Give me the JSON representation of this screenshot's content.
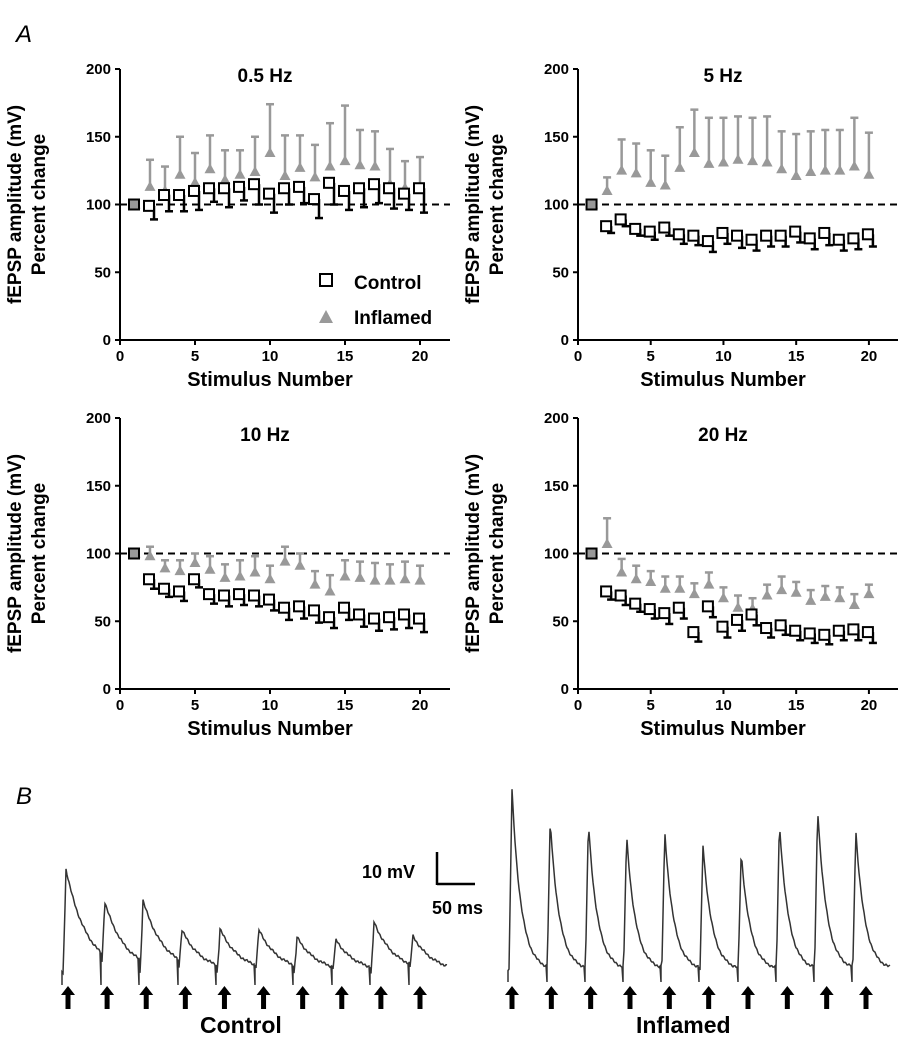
{
  "labels": {
    "panel_a": "A",
    "panel_b": "B"
  },
  "colors": {
    "control": "#000000",
    "inflamed": "#999999"
  },
  "legend": {
    "control": "Control",
    "inflamed": "Inflamed"
  },
  "traces": {
    "scale_v": "10 mV",
    "scale_t": "50 ms",
    "control_label": "Control",
    "inflamed_label": "Inflamed",
    "arrow_count": 10
  },
  "chart_data": [
    {
      "type": "scatter",
      "title": "0.5 Hz",
      "xlabel": "Stimulus Number",
      "ylabel": [
        "fEPSP amplitude (mV)",
        "Percent change"
      ],
      "xlim": [
        0,
        22
      ],
      "ylim": [
        0,
        200
      ],
      "xticks": [
        0,
        5,
        10,
        15,
        20
      ],
      "yticks": [
        0,
        50,
        100,
        150,
        200
      ],
      "reference_line": 100,
      "legend": true,
      "series": [
        {
          "name": "Control",
          "x": [
            1,
            2,
            3,
            4,
            5,
            6,
            7,
            8,
            9,
            10,
            11,
            12,
            13,
            14,
            15,
            16,
            17,
            18,
            19,
            20
          ],
          "values": [
            100,
            99,
            107,
            107,
            110,
            112,
            112,
            113,
            115,
            108,
            112,
            113,
            104,
            116,
            110,
            112,
            115,
            112,
            108,
            112
          ],
          "errors": [
            0,
            10,
            12,
            12,
            14,
            10,
            14,
            10,
            15,
            14,
            12,
            12,
            14,
            16,
            14,
            14,
            14,
            15,
            12,
            18
          ]
        },
        {
          "name": "Inflamed",
          "x": [
            1,
            2,
            3,
            4,
            5,
            6,
            7,
            8,
            9,
            10,
            11,
            12,
            13,
            14,
            15,
            16,
            17,
            18,
            19,
            20
          ],
          "values": [
            100,
            113,
            110,
            122,
            116,
            126,
            118,
            122,
            124,
            138,
            121,
            127,
            120,
            128,
            132,
            129,
            128,
            115,
            112,
            113
          ],
          "errors": [
            0,
            20,
            18,
            28,
            22,
            25,
            22,
            18,
            26,
            36,
            30,
            24,
            24,
            32,
            41,
            26,
            26,
            26,
            20,
            22
          ]
        }
      ]
    },
    {
      "type": "scatter",
      "title": "5 Hz",
      "xlabel": "Stimulus Number",
      "ylabel": [
        "fEPSP amplitude (mV)",
        "Percent change"
      ],
      "xlim": [
        0,
        22
      ],
      "ylim": [
        0,
        200
      ],
      "xticks": [
        0,
        5,
        10,
        15,
        20
      ],
      "yticks": [
        0,
        50,
        100,
        150,
        200
      ],
      "reference_line": 100,
      "series": [
        {
          "name": "Control",
          "x": [
            1,
            2,
            3,
            4,
            5,
            6,
            7,
            8,
            9,
            10,
            11,
            12,
            13,
            14,
            15,
            16,
            17,
            18,
            19,
            20
          ],
          "values": [
            100,
            84,
            89,
            82,
            80,
            83,
            78,
            77,
            73,
            79,
            77,
            74,
            77,
            77,
            80,
            75,
            79,
            74,
            75,
            78
          ],
          "errors": [
            0,
            5,
            5,
            5,
            6,
            6,
            7,
            7,
            8,
            8,
            9,
            8,
            8,
            8,
            8,
            8,
            9,
            8,
            8,
            9
          ]
        },
        {
          "name": "Inflamed",
          "x": [
            1,
            2,
            3,
            4,
            5,
            6,
            7,
            8,
            9,
            10,
            11,
            12,
            13,
            14,
            15,
            16,
            17,
            18,
            19,
            20
          ],
          "values": [
            100,
            110,
            125,
            123,
            116,
            114,
            127,
            138,
            130,
            131,
            133,
            132,
            131,
            126,
            121,
            124,
            125,
            125,
            128,
            122
          ],
          "errors": [
            0,
            10,
            23,
            22,
            24,
            22,
            30,
            32,
            34,
            33,
            32,
            32,
            34,
            28,
            31,
            30,
            30,
            30,
            36,
            31
          ]
        }
      ]
    },
    {
      "type": "scatter",
      "title": "10 Hz",
      "xlabel": "Stimulus Number",
      "ylabel": [
        "fEPSP amplitude (mV)",
        "Percent change"
      ],
      "xlim": [
        0,
        22
      ],
      "ylim": [
        0,
        200
      ],
      "xticks": [
        0,
        5,
        10,
        15,
        20
      ],
      "yticks": [
        0,
        50,
        100,
        150,
        200
      ],
      "reference_line": 100,
      "series": [
        {
          "name": "Control",
          "x": [
            1,
            2,
            3,
            4,
            5,
            6,
            7,
            8,
            9,
            10,
            11,
            12,
            13,
            14,
            15,
            16,
            17,
            18,
            19,
            20
          ],
          "values": [
            100,
            81,
            74,
            72,
            81,
            70,
            69,
            70,
            69,
            66,
            60,
            61,
            58,
            53,
            60,
            55,
            52,
            53,
            55,
            52
          ],
          "errors": [
            0,
            7,
            6,
            7,
            6,
            7,
            8,
            8,
            8,
            8,
            9,
            9,
            9,
            8,
            9,
            9,
            9,
            9,
            10,
            10
          ]
        },
        {
          "name": "Inflamed",
          "x": [
            1,
            2,
            3,
            4,
            5,
            6,
            7,
            8,
            9,
            10,
            11,
            12,
            13,
            14,
            15,
            16,
            17,
            18,
            19,
            20
          ],
          "values": [
            100,
            98,
            89,
            87,
            93,
            88,
            82,
            83,
            86,
            81,
            94,
            91,
            77,
            72,
            83,
            82,
            80,
            80,
            81,
            80
          ],
          "errors": [
            0,
            7,
            6,
            8,
            7,
            10,
            10,
            12,
            12,
            10,
            11,
            9,
            10,
            12,
            12,
            12,
            13,
            12,
            13,
            11
          ]
        }
      ]
    },
    {
      "type": "scatter",
      "title": "20 Hz",
      "xlabel": "Stimulus Number",
      "ylabel": [
        "fEPSP amplitude (mV)",
        "Percent change"
      ],
      "xlim": [
        0,
        22
      ],
      "ylim": [
        0,
        200
      ],
      "xticks": [
        0,
        5,
        10,
        15,
        20
      ],
      "yticks": [
        0,
        50,
        100,
        150,
        200
      ],
      "reference_line": 100,
      "series": [
        {
          "name": "Control",
          "x": [
            1,
            2,
            3,
            4,
            5,
            6,
            7,
            8,
            9,
            10,
            11,
            12,
            13,
            14,
            15,
            16,
            17,
            18,
            19,
            20
          ],
          "values": [
            100,
            72,
            69,
            63,
            59,
            56,
            60,
            42,
            61,
            46,
            51,
            55,
            45,
            47,
            43,
            41,
            40,
            43,
            44,
            42
          ],
          "errors": [
            0,
            6,
            7,
            6,
            7,
            8,
            8,
            7,
            8,
            8,
            8,
            8,
            7,
            7,
            7,
            7,
            7,
            7,
            8,
            8
          ]
        },
        {
          "name": "Inflamed",
          "x": [
            1,
            2,
            3,
            4,
            5,
            6,
            7,
            8,
            9,
            10,
            11,
            12,
            13,
            14,
            15,
            16,
            17,
            18,
            19,
            20
          ],
          "values": [
            100,
            107,
            86,
            81,
            79,
            74,
            74,
            70,
            77,
            67,
            60,
            59,
            69,
            73,
            71,
            65,
            68,
            67,
            62,
            70
          ],
          "errors": [
            0,
            19,
            10,
            10,
            8,
            9,
            9,
            8,
            9,
            8,
            9,
            8,
            8,
            10,
            8,
            8,
            8,
            8,
            8,
            7
          ]
        }
      ]
    }
  ]
}
